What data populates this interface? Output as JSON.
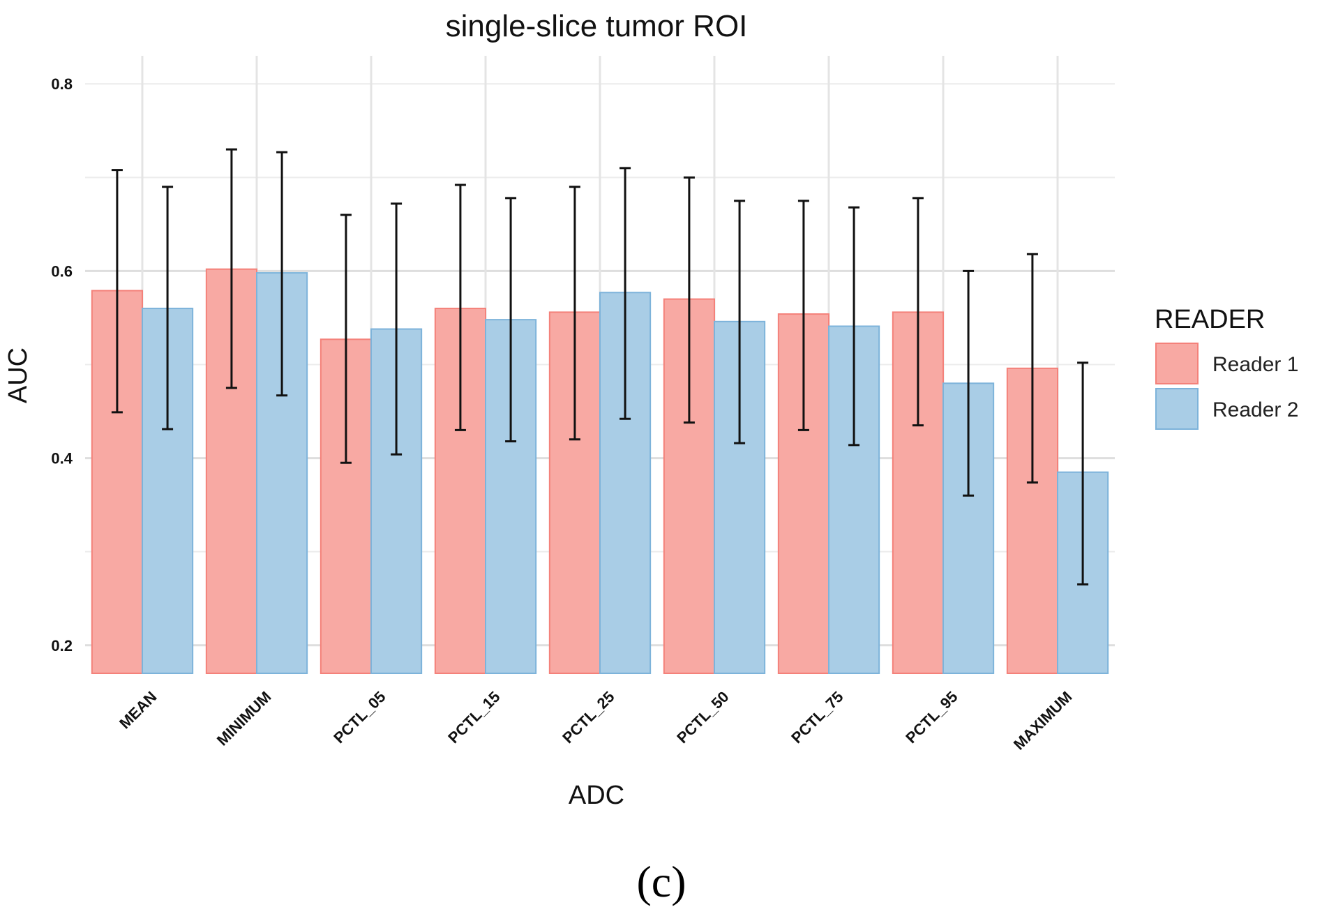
{
  "caption": "(c)",
  "chart_data": {
    "type": "bar",
    "title": "single-slice tumor ROI",
    "xlabel": "ADC",
    "ylabel": "AUC",
    "ylim": [
      0.17,
      0.83
    ],
    "yticks": [
      0.2,
      0.4,
      0.6,
      0.8
    ],
    "ytick_labels": [
      "0.2",
      "0.4",
      "0.6",
      "0.8"
    ],
    "grid": true,
    "categories": [
      "MEAN",
      "MINIMUM",
      "PCTL_05",
      "PCTL_15",
      "PCTL_25",
      "PCTL_50",
      "PCTL_75",
      "PCTL_95",
      "MAXIMUM"
    ],
    "legend": {
      "title": "READER",
      "position": "right"
    },
    "series": [
      {
        "name": "Reader 1",
        "color": "#f8a9a3",
        "stroke": "#f4817a",
        "values": [
          0.579,
          0.602,
          0.527,
          0.56,
          0.556,
          0.57,
          0.554,
          0.556,
          0.496
        ],
        "lower": [
          0.449,
          0.475,
          0.395,
          0.43,
          0.42,
          0.438,
          0.43,
          0.435,
          0.374
        ],
        "upper": [
          0.708,
          0.73,
          0.66,
          0.692,
          0.69,
          0.7,
          0.675,
          0.678,
          0.618
        ]
      },
      {
        "name": "Reader 2",
        "color": "#a9cde6",
        "stroke": "#7db3da",
        "values": [
          0.56,
          0.598,
          0.538,
          0.548,
          0.577,
          0.546,
          0.541,
          0.48,
          0.385
        ],
        "lower": [
          0.431,
          0.467,
          0.404,
          0.418,
          0.442,
          0.416,
          0.414,
          0.36,
          0.265
        ],
        "upper": [
          0.69,
          0.727,
          0.672,
          0.678,
          0.71,
          0.675,
          0.668,
          0.6,
          0.502
        ]
      }
    ]
  }
}
